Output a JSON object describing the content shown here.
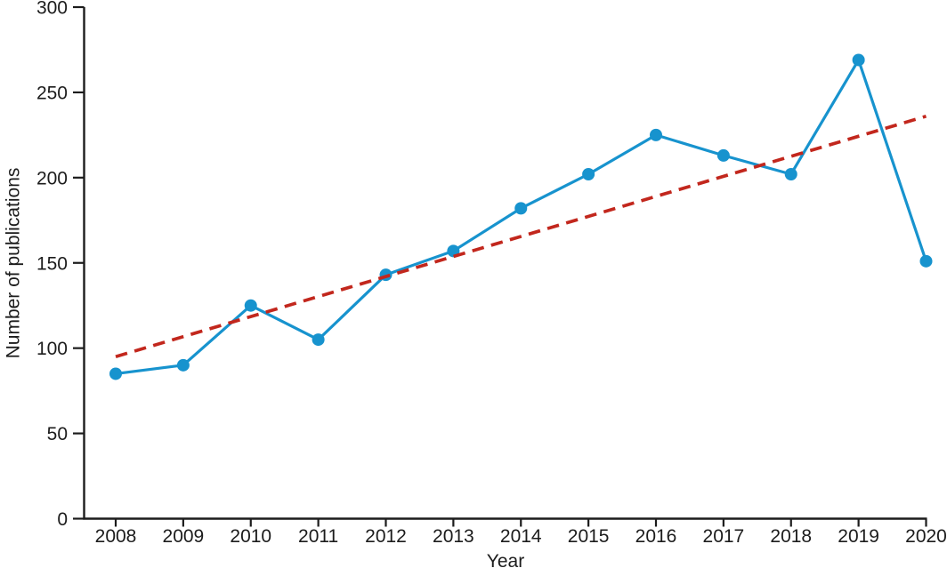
{
  "figure": {
    "background_color": "#ffffff",
    "ink_color": "#1c1c1c"
  },
  "chart_data": {
    "type": "line",
    "title": "",
    "xlabel": "Year",
    "ylabel": "Number of publications",
    "categories": [
      "2008",
      "2009",
      "2010",
      "2011",
      "2012",
      "2013",
      "2014",
      "2015",
      "2016",
      "2017",
      "2018",
      "2019",
      "2020"
    ],
    "series": [
      {
        "name": "publications-per-year",
        "style": "solid-line-with-circle-markers",
        "color": "#1793ce",
        "values": [
          85,
          90,
          125,
          105,
          143,
          157,
          182,
          202,
          225,
          213,
          202,
          269,
          151
        ]
      },
      {
        "name": "linear-trend",
        "style": "dashed-line",
        "color": "#c2271d",
        "endpoint_categories": [
          "2008",
          "2020"
        ],
        "endpoint_values": [
          95,
          236
        ]
      }
    ],
    "ylim": [
      0,
      300
    ],
    "yticks": [
      0,
      50,
      100,
      150,
      200,
      250,
      300
    ],
    "grid": false,
    "legend": "none",
    "marker": "circle"
  }
}
